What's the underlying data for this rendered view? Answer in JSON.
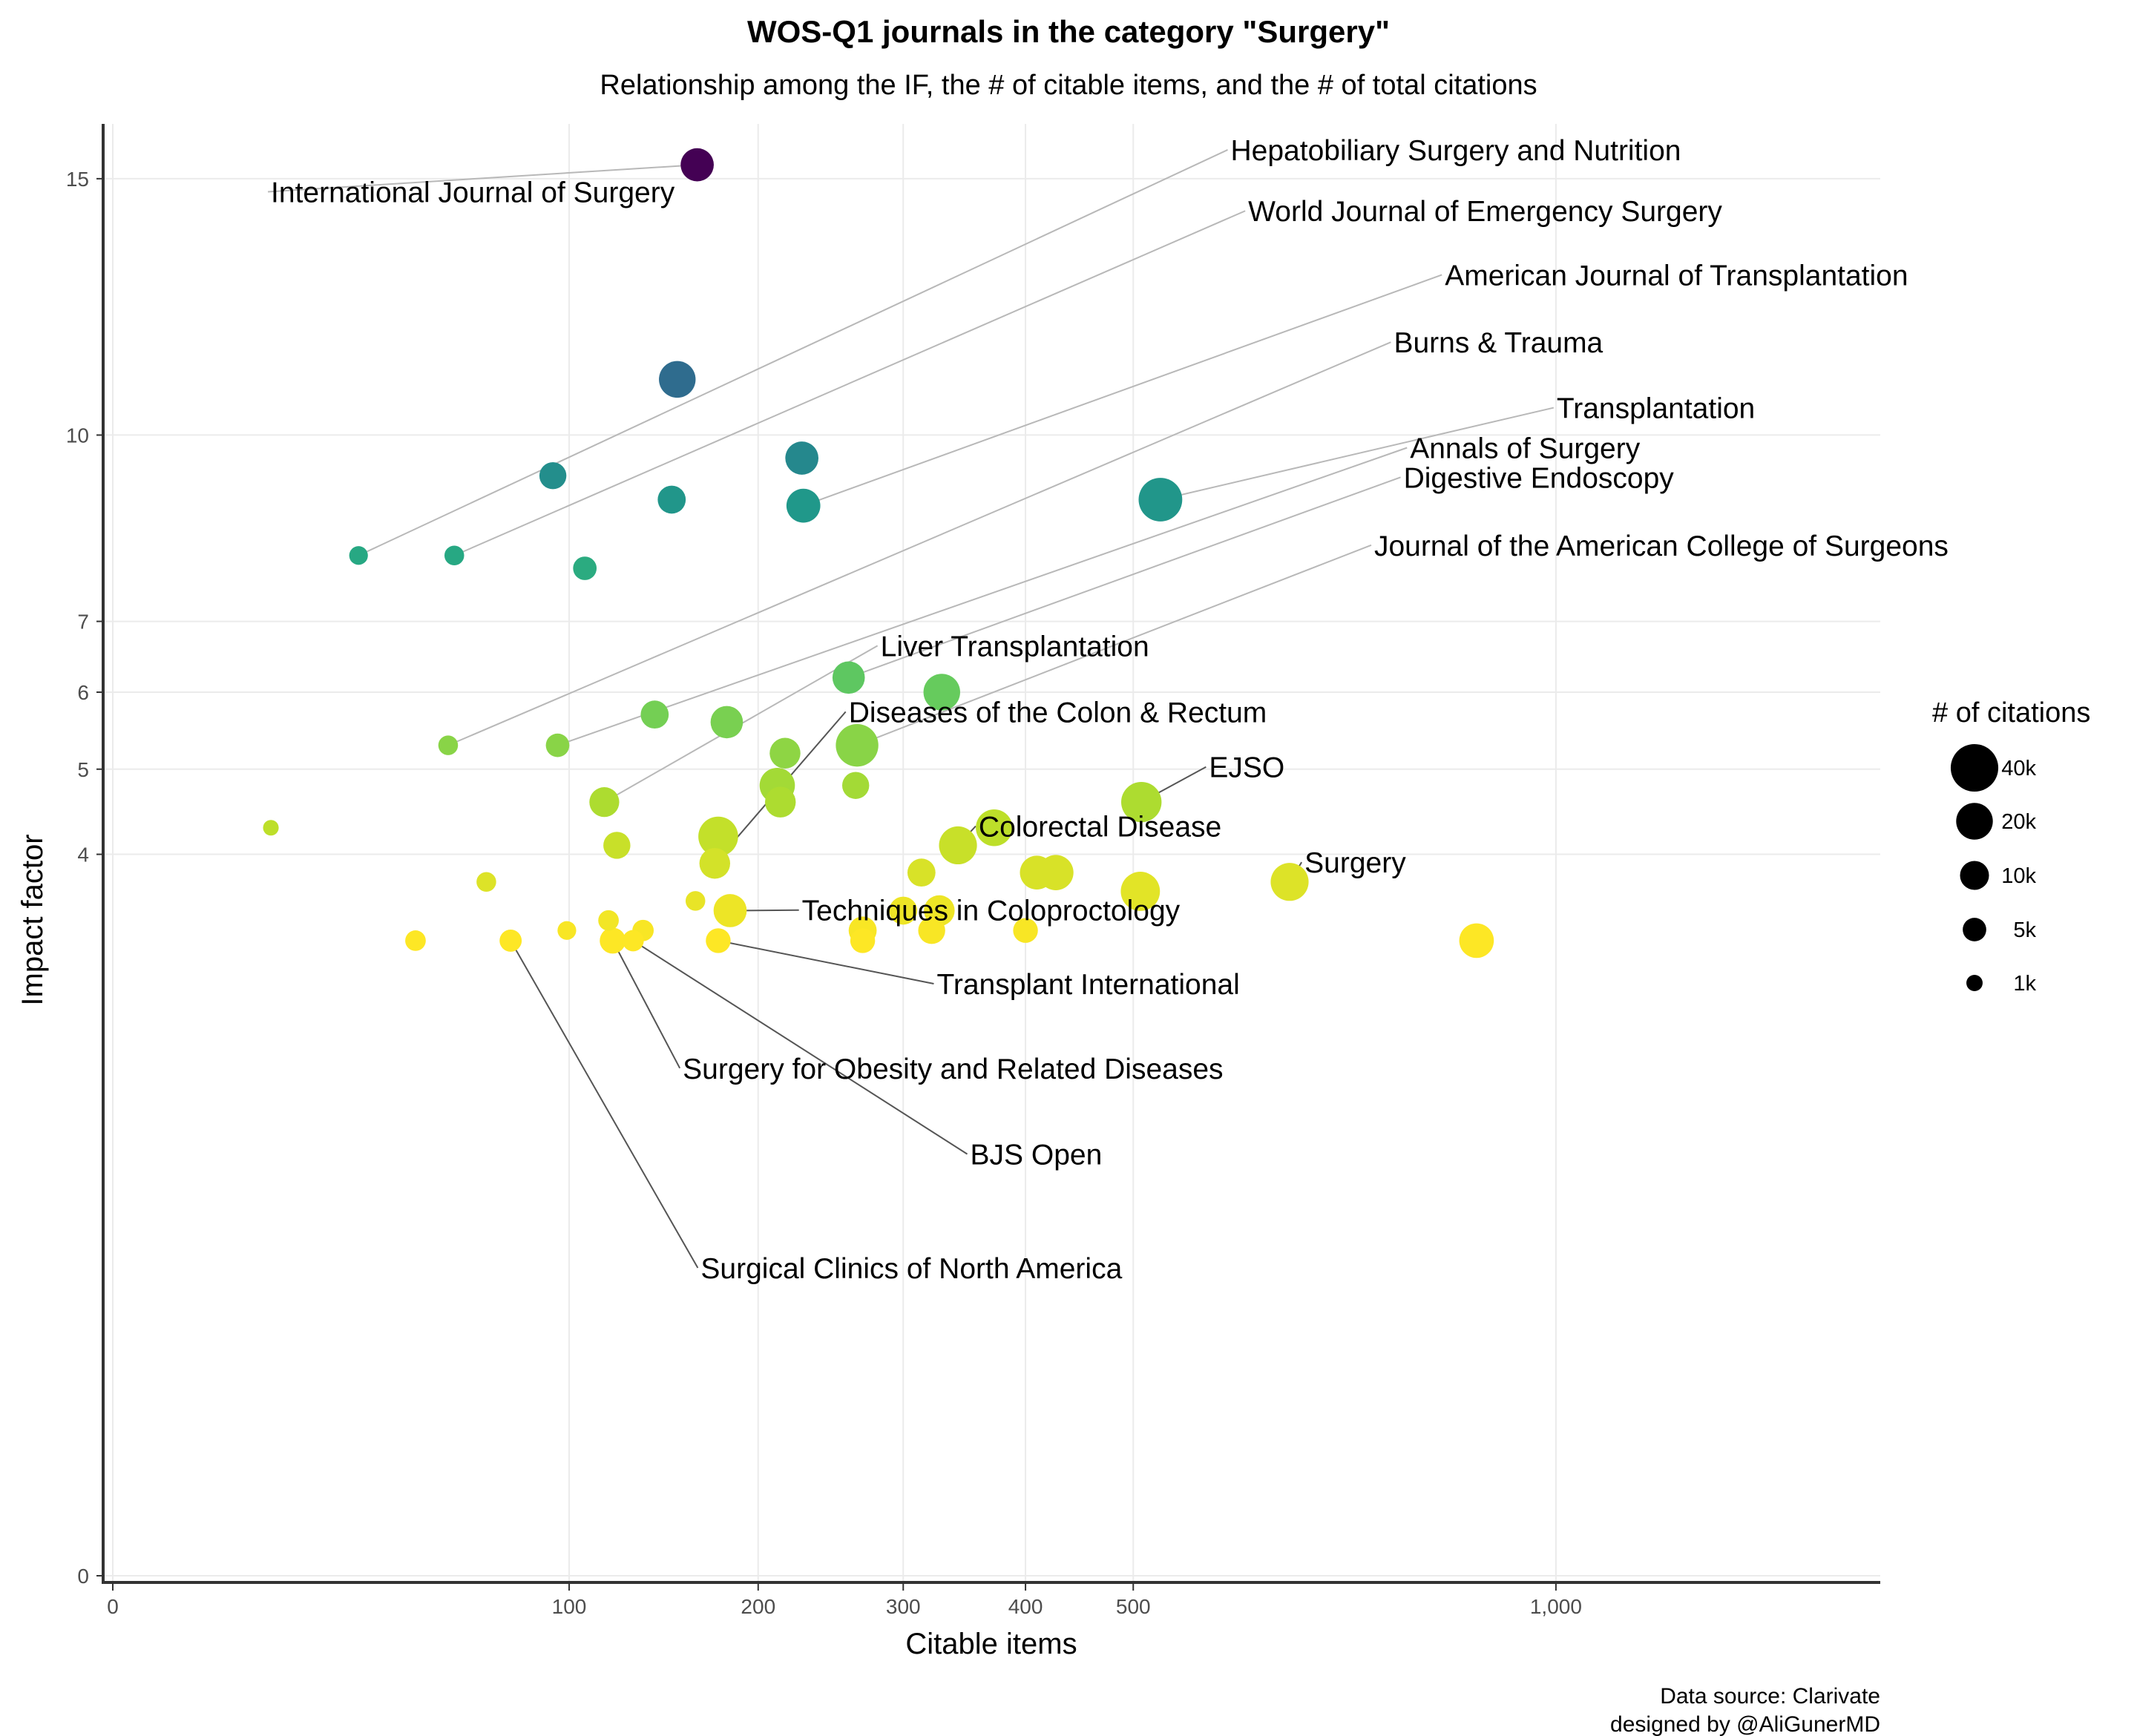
{
  "chart_data": {
    "type": "scatter",
    "title": "WOS-Q1 journals in the category \"Surgery\"",
    "subtitle": "Relationship among the IF, the # of citable items, and the # of total citations",
    "xlabel": "Citable items",
    "ylabel": "Impact factor",
    "caption_lines": [
      "Data source: Clarivate",
      "designed by @AliGunerMD"
    ],
    "x_scale": "sqrt",
    "y_scale": "sqrt",
    "xlim": [
      0,
      1500
    ],
    "ylim": [
      0,
      16.2
    ],
    "x_ticks": [
      0,
      100,
      200,
      300,
      400,
      500,
      1000
    ],
    "x_tick_labels": [
      "0",
      "100",
      "200",
      "300",
      "400",
      "500",
      "1,000"
    ],
    "y_ticks": [
      0,
      4,
      5,
      6,
      7,
      10,
      15
    ],
    "y_tick_labels": [
      "0",
      "4",
      "5",
      "6",
      "7",
      "10",
      "15"
    ],
    "grid": true,
    "color_scale": "viridis (mapped to impact factor)",
    "size_legend": {
      "title": "# of citations",
      "position": "right",
      "entries": [
        {
          "label": "40k",
          "value": 40000
        },
        {
          "label": "20k",
          "value": 20000
        },
        {
          "label": "10k",
          "value": 10000
        },
        {
          "label": "5k",
          "value": 5000
        },
        {
          "label": "1k",
          "value": 1000
        }
      ]
    },
    "points": [
      {
        "x": 164,
        "y": 15.3,
        "citations": 15000,
        "label": "International Journal of Surgery"
      },
      {
        "x": 153,
        "y": 11.0,
        "citations": 20000
      },
      {
        "x": 29,
        "y": 8.0,
        "citations": 2000,
        "label": "Hepatobiliary Surgery and Nutrition"
      },
      {
        "x": 56,
        "y": 8.0,
        "citations": 2500,
        "label": "World Journal of Emergency Surgery"
      },
      {
        "x": 228,
        "y": 9.6,
        "citations": 15000
      },
      {
        "x": 93,
        "y": 9.3,
        "citations": 8000
      },
      {
        "x": 150,
        "y": 8.9,
        "citations": 9000
      },
      {
        "x": 229,
        "y": 8.8,
        "citations": 16000,
        "label": "American Journal of Transplantation"
      },
      {
        "x": 527,
        "y": 8.9,
        "citations": 32000,
        "label": "Transplantation"
      },
      {
        "x": 107,
        "y": 7.8,
        "citations": 5000
      },
      {
        "x": 260,
        "y": 6.2,
        "citations": 14000,
        "label": "Digestive Endoscopy"
      },
      {
        "x": 330,
        "y": 6.0,
        "citations": 20000
      },
      {
        "x": 54,
        "y": 5.3,
        "citations": 2500,
        "label": "Burns & Trauma"
      },
      {
        "x": 95,
        "y": 5.3,
        "citations": 5000,
        "label": "Annals of Surgery"
      },
      {
        "x": 141,
        "y": 5.7,
        "citations": 9000
      },
      {
        "x": 181,
        "y": 5.6,
        "citations": 14000
      },
      {
        "x": 266,
        "y": 5.3,
        "citations": 30000,
        "label": "Journal of the American College of Surgeons"
      },
      {
        "x": 217,
        "y": 5.2,
        "citations": 12000
      },
      {
        "x": 212,
        "y": 4.8,
        "citations": 18000
      },
      {
        "x": 265,
        "y": 4.8,
        "citations": 8000
      },
      {
        "x": 116,
        "y": 4.6,
        "citations": 11000,
        "label": "Liver Transplantation"
      },
      {
        "x": 214,
        "y": 4.6,
        "citations": 12000
      },
      {
        "x": 508,
        "y": 4.6,
        "citations": 26000,
        "label": "EJSO"
      },
      {
        "x": 176,
        "y": 4.2,
        "citations": 25000
      },
      {
        "x": 12,
        "y": 4.3,
        "citations": 800
      },
      {
        "x": 122,
        "y": 4.1,
        "citations": 8000
      },
      {
        "x": 373,
        "y": 4.3,
        "citations": 20000
      },
      {
        "x": 343,
        "y": 4.1,
        "citations": 22000,
        "label": "Colorectal Disease"
      },
      {
        "x": 174,
        "y": 3.9,
        "citations": 12000,
        "label": "Diseases of the Colon & Rectum"
      },
      {
        "x": 314,
        "y": 3.8,
        "citations": 9000
      },
      {
        "x": 410,
        "y": 3.8,
        "citations": 16000
      },
      {
        "x": 427,
        "y": 3.8,
        "citations": 18000
      },
      {
        "x": 507,
        "y": 3.6,
        "citations": 24000
      },
      {
        "x": 665,
        "y": 3.7,
        "citations": 22000,
        "label": "Surgery"
      },
      {
        "x": 67,
        "y": 3.7,
        "citations": 2500
      },
      {
        "x": 163,
        "y": 3.5,
        "citations": 2500
      },
      {
        "x": 183,
        "y": 3.4,
        "citations": 15000,
        "label": "Techniques in Coloproctology"
      },
      {
        "x": 300,
        "y": 3.4,
        "citations": 9000
      },
      {
        "x": 328,
        "y": 3.4,
        "citations": 12000
      },
      {
        "x": 118,
        "y": 3.3,
        "citations": 3000
      },
      {
        "x": 99,
        "y": 3.2,
        "citations": 2000
      },
      {
        "x": 135,
        "y": 3.2,
        "citations": 3500
      },
      {
        "x": 400,
        "y": 3.2,
        "citations": 6000
      },
      {
        "x": 270,
        "y": 3.2,
        "citations": 9000
      },
      {
        "x": 322,
        "y": 3.2,
        "citations": 8000
      },
      {
        "x": 44,
        "y": 3.1,
        "citations": 3000
      },
      {
        "x": 76,
        "y": 3.1,
        "citations": 4000,
        "label": "Surgical Clinics of North America"
      },
      {
        "x": 120,
        "y": 3.1,
        "citations": 7000,
        "label": "Surgery for Obesity and Related Diseases"
      },
      {
        "x": 130,
        "y": 3.1,
        "citations": 3500,
        "label": "BJS Open"
      },
      {
        "x": 176,
        "y": 3.1,
        "citations": 6000,
        "label": "Transplant International"
      },
      {
        "x": 270,
        "y": 3.1,
        "citations": 6000
      },
      {
        "x": 893,
        "y": 3.1,
        "citations": 17000
      }
    ],
    "annotations": [
      {
        "text": "International Journal of Surgery",
        "x": 12,
        "y": 14.5
      },
      {
        "text": "Hepatobiliary Surgery and Nutrition",
        "x": 600,
        "y": 15.4
      },
      {
        "text": "World Journal of Emergency Surgery",
        "x": 619,
        "y": 14.1
      },
      {
        "text": "American Journal of Transplantation",
        "x": 852,
        "y": 12.8
      },
      {
        "text": "Burns & Trauma",
        "x": 788,
        "y": 11.5
      },
      {
        "text": "Transplantation",
        "x": 1001,
        "y": 10.3
      },
      {
        "text": "Annals of Surgery",
        "x": 808,
        "y": 9.6
      },
      {
        "text": "Digestive Endoscopy",
        "x": 800,
        "y": 9.1
      },
      {
        "text": "Journal of the American College of Surgeons",
        "x": 764,
        "y": 8.0
      },
      {
        "text": "Liver Transplantation",
        "x": 283,
        "y": 6.5
      },
      {
        "text": "Diseases of the Colon & Rectum",
        "x": 260,
        "y": 5.6
      },
      {
        "text": "EJSO",
        "x": 577,
        "y": 4.9
      },
      {
        "text": "Colorectal Disease",
        "x": 360,
        "y": 4.2
      },
      {
        "text": "Surgery",
        "x": 682,
        "y": 3.8
      },
      {
        "text": "Techniques in Coloproctology",
        "x": 228,
        "y": 3.3
      },
      {
        "text": "Transplant International",
        "x": 326,
        "y": 2.6
      },
      {
        "text": "Surgery for Obesity and Related Diseases",
        "x": 156,
        "y": 1.9
      },
      {
        "text": "BJS Open",
        "x": 353,
        "y": 1.3
      },
      {
        "text": "Surgical Clinics of North America",
        "x": 166,
        "y": 0.68
      }
    ]
  }
}
